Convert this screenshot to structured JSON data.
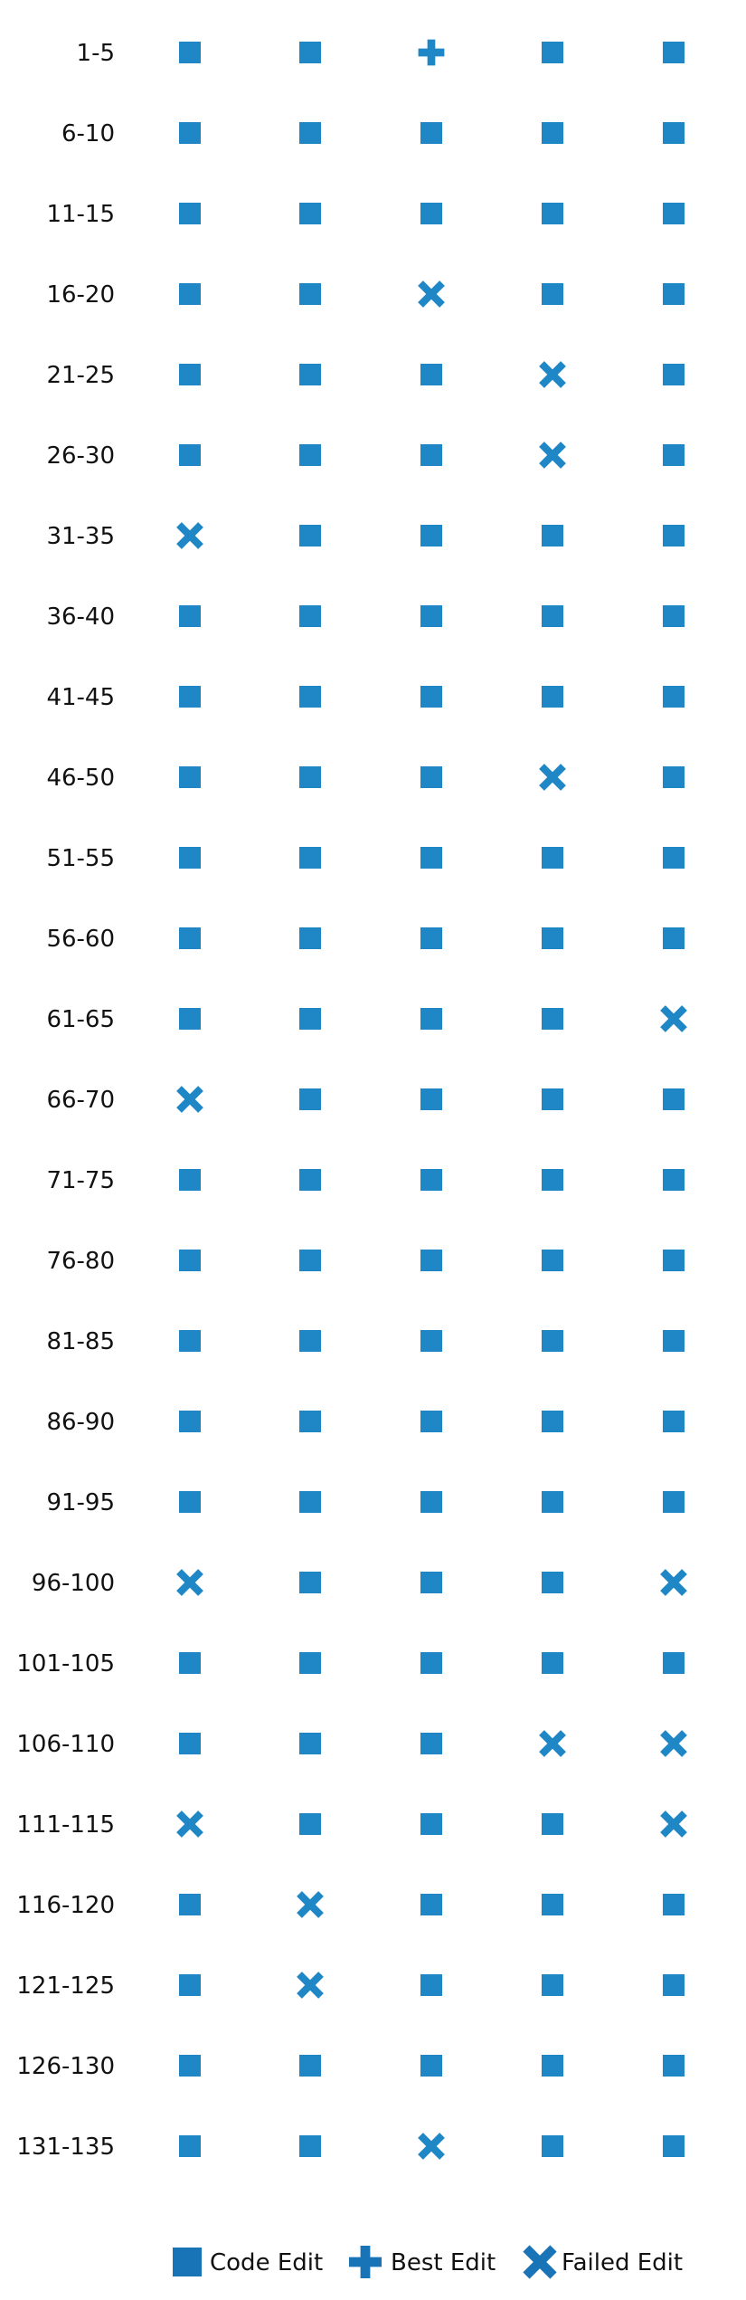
{
  "chart_data": {
    "type": "scatter",
    "title": "",
    "xlabel": "",
    "ylabel": "",
    "grid": false,
    "legend_placement": "bottom-center",
    "columns": 5,
    "rows": [
      {
        "label": "1-5",
        "marks": [
          "code",
          "code",
          "best",
          "code",
          "code"
        ]
      },
      {
        "label": "6-10",
        "marks": [
          "code",
          "code",
          "code",
          "code",
          "code"
        ]
      },
      {
        "label": "11-15",
        "marks": [
          "code",
          "code",
          "code",
          "code",
          "code"
        ]
      },
      {
        "label": "16-20",
        "marks": [
          "code",
          "code",
          "failed",
          "code",
          "code"
        ]
      },
      {
        "label": "21-25",
        "marks": [
          "code",
          "code",
          "code",
          "failed",
          "code"
        ]
      },
      {
        "label": "26-30",
        "marks": [
          "code",
          "code",
          "code",
          "failed",
          "code"
        ]
      },
      {
        "label": "31-35",
        "marks": [
          "failed",
          "code",
          "code",
          "code",
          "code"
        ]
      },
      {
        "label": "36-40",
        "marks": [
          "code",
          "code",
          "code",
          "code",
          "code"
        ]
      },
      {
        "label": "41-45",
        "marks": [
          "code",
          "code",
          "code",
          "code",
          "code"
        ]
      },
      {
        "label": "46-50",
        "marks": [
          "code",
          "code",
          "code",
          "failed",
          "code"
        ]
      },
      {
        "label": "51-55",
        "marks": [
          "code",
          "code",
          "code",
          "code",
          "code"
        ]
      },
      {
        "label": "56-60",
        "marks": [
          "code",
          "code",
          "code",
          "code",
          "code"
        ]
      },
      {
        "label": "61-65",
        "marks": [
          "code",
          "code",
          "code",
          "code",
          "failed"
        ]
      },
      {
        "label": "66-70",
        "marks": [
          "failed",
          "code",
          "code",
          "code",
          "code"
        ]
      },
      {
        "label": "71-75",
        "marks": [
          "code",
          "code",
          "code",
          "code",
          "code"
        ]
      },
      {
        "label": "76-80",
        "marks": [
          "code",
          "code",
          "code",
          "code",
          "code"
        ]
      },
      {
        "label": "81-85",
        "marks": [
          "code",
          "code",
          "code",
          "code",
          "code"
        ]
      },
      {
        "label": "86-90",
        "marks": [
          "code",
          "code",
          "code",
          "code",
          "code"
        ]
      },
      {
        "label": "91-95",
        "marks": [
          "code",
          "code",
          "code",
          "code",
          "code"
        ]
      },
      {
        "label": "96-100",
        "marks": [
          "failed",
          "code",
          "code",
          "code",
          "failed"
        ]
      },
      {
        "label": "101-105",
        "marks": [
          "code",
          "code",
          "code",
          "code",
          "code"
        ]
      },
      {
        "label": "106-110",
        "marks": [
          "code",
          "code",
          "code",
          "failed",
          "failed"
        ]
      },
      {
        "label": "111-115",
        "marks": [
          "failed",
          "code",
          "code",
          "code",
          "failed"
        ]
      },
      {
        "label": "116-120",
        "marks": [
          "code",
          "failed",
          "code",
          "code",
          "code"
        ]
      },
      {
        "label": "121-125",
        "marks": [
          "code",
          "failed",
          "code",
          "code",
          "code"
        ]
      },
      {
        "label": "126-130",
        "marks": [
          "code",
          "code",
          "code",
          "code",
          "code"
        ]
      },
      {
        "label": "131-135",
        "marks": [
          "code",
          "code",
          "failed",
          "code",
          "code"
        ]
      }
    ],
    "legend": [
      {
        "key": "code",
        "label": "Code Edit"
      },
      {
        "key": "best",
        "label": "Best Edit"
      },
      {
        "key": "failed",
        "label": "Failed Edit"
      }
    ],
    "colors": {
      "mark": "#1f87c6",
      "legend_mark": "#1874b6"
    }
  }
}
